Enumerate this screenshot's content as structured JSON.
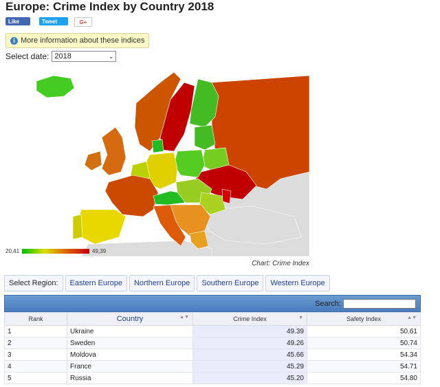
{
  "page": {
    "title": "Europe: Crime Index by Country 2018"
  },
  "social": {
    "like": "Like",
    "tweet": "Tweet",
    "gplus": "G+"
  },
  "info_button": "More information about these indices",
  "date": {
    "label": "Select date:",
    "value": "2018"
  },
  "map": {
    "legend_min": "20,41",
    "legend_max": "49,39",
    "caption": "Chart: Crime Index"
  },
  "regions": {
    "label": "Select Region:",
    "items": [
      "Eastern Europe",
      "Northern Europe",
      "Southern Europe",
      "Western Europe"
    ]
  },
  "table": {
    "search_label": "Search:",
    "columns": [
      "Rank",
      "Country",
      "Crime Index",
      "Safety Index"
    ],
    "rows": [
      {
        "rank": "1",
        "country": "Ukraine",
        "crime": "49.39",
        "safety": "50.61"
      },
      {
        "rank": "2",
        "country": "Sweden",
        "crime": "49.26",
        "safety": "50.74"
      },
      {
        "rank": "3",
        "country": "Moldova",
        "crime": "45.66",
        "safety": "54.34"
      },
      {
        "rank": "4",
        "country": "France",
        "crime": "45.29",
        "safety": "54.71"
      },
      {
        "rank": "5",
        "country": "Russia",
        "crime": "45.20",
        "safety": "54.80"
      }
    ]
  },
  "colors": {
    "low": "#00bb00",
    "mid": "#d8e000",
    "high": "#c00000"
  }
}
